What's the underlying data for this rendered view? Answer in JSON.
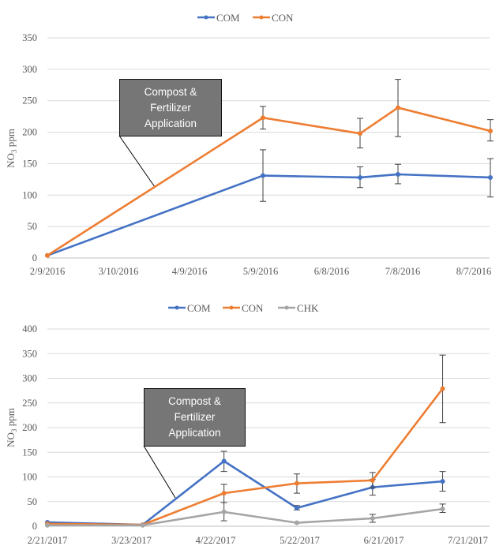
{
  "chart_data": [
    {
      "type": "line",
      "title": "",
      "ylabel": "NO3 ppm",
      "ylabel_main": "NO",
      "ylabel_sub": "3",
      "ylabel_tail": " ppm",
      "ylim": [
        0,
        350
      ],
      "yticks": [
        0,
        50,
        100,
        150,
        200,
        250,
        300,
        350
      ],
      "x_unit": "days since 2/9/2016",
      "xlim": [
        0,
        187
      ],
      "xtick_days": [
        0,
        30,
        60,
        90,
        120,
        150,
        180
      ],
      "xtick_labels": [
        "2/9/2016",
        "3/10/2016",
        "4/9/2016",
        "5/9/2016",
        "6/8/2016",
        "7/8/2016",
        "8/7/2016"
      ],
      "x": [
        0,
        91,
        132,
        148,
        187
      ],
      "legend_position": "top",
      "grid": true,
      "annotation": [
        "Compost &",
        "Fertilizer",
        "Application"
      ],
      "series": [
        {
          "name": "COM",
          "color": "#4472C4",
          "values": [
            4,
            131,
            128,
            133,
            128
          ],
          "err_low": [
            null,
            90,
            112,
            118,
            97
          ],
          "err_high": [
            null,
            172,
            145,
            149,
            158
          ]
        },
        {
          "name": "CON",
          "color": "#ED7D31",
          "values": [
            4,
            223,
            198,
            239,
            202
          ],
          "err_low": [
            null,
            205,
            175,
            193,
            186
          ],
          "err_high": [
            null,
            241,
            222,
            284,
            220
          ]
        }
      ]
    },
    {
      "type": "line",
      "title": "",
      "ylabel": "NO3 ppm",
      "ylabel_main": "NO",
      "ylabel_sub": "3",
      "ylabel_tail": " ppm",
      "ylim": [
        0,
        400
      ],
      "yticks": [
        0,
        50,
        100,
        150,
        200,
        250,
        300,
        350,
        400
      ],
      "x_unit": "days since 2/21/2017",
      "xlim": [
        0,
        159
      ],
      "xtick_days": [
        0,
        30,
        60,
        90,
        120,
        150
      ],
      "xtick_labels": [
        "2/21/2017",
        "3/23/2017",
        "4/22/2017",
        "5/22/2017",
        "6/21/2017",
        "7/21/2017"
      ],
      "x": [
        0,
        34,
        63,
        89,
        116,
        141
      ],
      "legend_position": "top",
      "grid": true,
      "annotation": [
        "Compost &",
        "Fertilizer",
        "Application"
      ],
      "series": [
        {
          "name": "COM",
          "color": "#4472C4",
          "values": [
            8,
            3,
            132,
            37,
            79,
            91
          ],
          "err_low": [
            null,
            null,
            111,
            33,
            63,
            71
          ],
          "err_high": [
            null,
            null,
            152,
            42,
            95,
            111
          ]
        },
        {
          "name": "CON",
          "color": "#ED7D31",
          "values": [
            5,
            3,
            67,
            87,
            93,
            279
          ],
          "err_low": [
            null,
            null,
            48,
            67,
            78,
            210
          ],
          "err_high": [
            null,
            null,
            85,
            106,
            109,
            347
          ]
        },
        {
          "name": "CHK",
          "color": "#A5A5A5",
          "values": [
            2,
            2,
            29,
            7,
            16,
            35
          ],
          "err_low": [
            null,
            null,
            11,
            null,
            8,
            28
          ],
          "err_high": [
            null,
            null,
            48,
            null,
            24,
            45
          ]
        }
      ]
    }
  ]
}
